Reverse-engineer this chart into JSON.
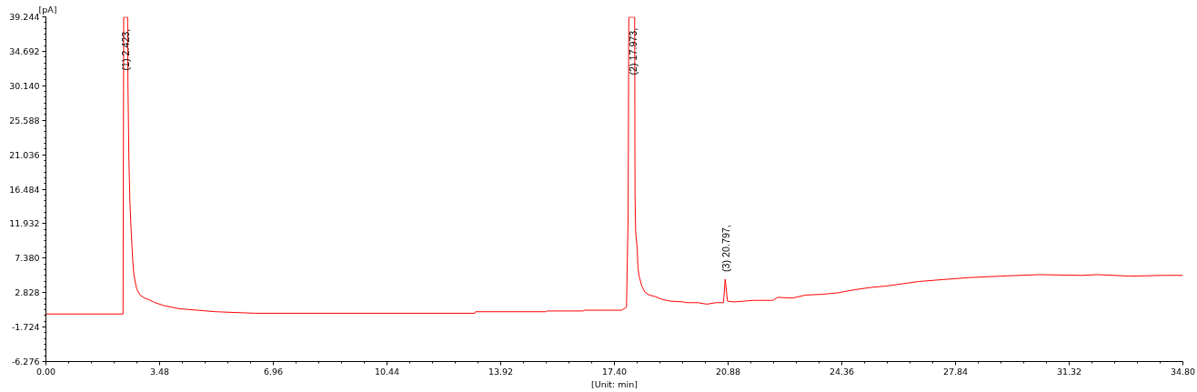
{
  "chart_data": {
    "type": "line",
    "xlabel": "[Unit: min]",
    "ylabel": "[pA]",
    "xlim": [
      0,
      34.8
    ],
    "ylim": [
      -6.276,
      39.244
    ],
    "xticks": [
      {
        "value": 0,
        "label": "0.00"
      },
      3.48,
      6.96,
      10.44,
      13.92,
      {
        "value": 17.4,
        "label": "17.40"
      },
      20.88,
      24.36,
      27.84,
      31.32,
      {
        "value": 34.8,
        "label": "34.80"
      }
    ],
    "yticks": [
      -6.276,
      -1.724,
      2.828,
      {
        "value": 7.38,
        "label": "7.380"
      },
      11.932,
      16.484,
      21.036,
      25.588,
      {
        "value": 30.14,
        "label": "30.140"
      },
      34.692,
      39.244
    ],
    "grid": false,
    "series": [
      {
        "color": "#ff0000",
        "x": [
          0.0,
          2.36,
          2.38,
          2.5,
          2.51,
          2.54,
          2.57,
          2.6,
          2.63,
          2.66,
          2.69,
          2.74,
          2.78,
          2.88,
          3.02,
          3.15,
          3.34,
          3.62,
          4.08,
          4.64,
          5.2,
          6.4,
          13.13,
          13.15,
          15.31,
          15.33,
          16.45,
          16.47,
          17.62,
          17.77,
          17.82,
          17.84,
          18.02,
          18.03,
          18.05,
          18.1,
          18.12,
          18.16,
          18.24,
          18.33,
          18.47,
          18.65,
          18.88,
          19.12,
          19.49,
          19.63,
          19.95,
          20.23,
          20.51,
          20.74,
          20.79,
          20.86,
          21.06,
          21.66,
          22.25,
          22.4,
          22.85,
          23.25,
          23.74,
          24.24,
          24.74,
          25.23,
          25.73,
          26.23,
          26.73,
          27.32,
          28.22,
          29.21,
          30.4,
          31.7,
          32.19,
          33.19,
          34.18,
          34.8
        ],
        "values": [
          0.0,
          0.0,
          39.2,
          39.2,
          30.6,
          20.3,
          14.9,
          11.7,
          9.3,
          6.9,
          5.3,
          4.1,
          3.3,
          2.5,
          2.1,
          1.9,
          1.5,
          1.1,
          0.7,
          0.5,
          0.3,
          0.1,
          0.1,
          0.3,
          0.3,
          0.4,
          0.4,
          0.5,
          0.5,
          0.9,
          13.1,
          39.2,
          39.2,
          16.1,
          10.9,
          8.5,
          6.1,
          4.9,
          3.7,
          2.9,
          2.5,
          2.3,
          1.9,
          1.7,
          1.6,
          1.5,
          1.5,
          1.3,
          1.5,
          1.5,
          4.6,
          1.7,
          1.6,
          1.8,
          1.8,
          2.2,
          2.1,
          2.5,
          2.6,
          2.8,
          3.2,
          3.5,
          3.7,
          4.0,
          4.3,
          4.5,
          4.8,
          5.0,
          5.2,
          5.1,
          5.2,
          5.0,
          5.1,
          5.1
        ]
      }
    ],
    "annotations": [
      {
        "text": "(1) 2.423,",
        "x": 2.423,
        "y": 31.2
      },
      {
        "text": "(2) 17.973,",
        "x": 17.973,
        "y": 30.6
      },
      {
        "text": "(3) 20.797,",
        "x": 20.797,
        "y": 4.6
      }
    ]
  }
}
